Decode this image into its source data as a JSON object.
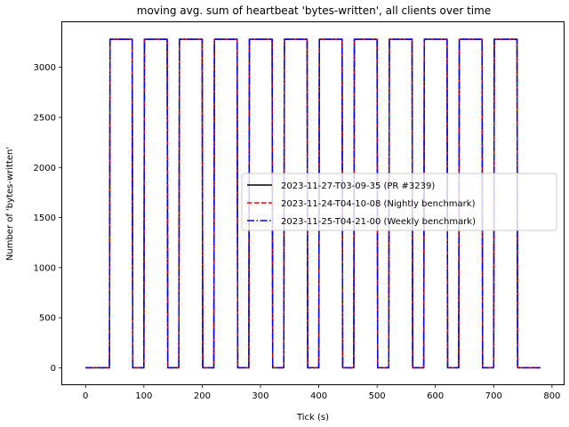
{
  "chart_data": {
    "type": "line",
    "title": "moving avg. sum of heartbeat 'bytes-written', all clients over time",
    "xlabel": "Tick (s)",
    "ylabel": "Number of 'bytes-written'",
    "xlim": [
      -40,
      820
    ],
    "ylim": [
      -165,
      3450
    ],
    "xticks": [
      0,
      100,
      200,
      300,
      400,
      500,
      600,
      700,
      800
    ],
    "yticks": [
      0,
      500,
      1000,
      1500,
      2000,
      2500,
      3000
    ],
    "grid": false,
    "legend_position": "center-right",
    "x": [
      0,
      41,
      42,
      80,
      81,
      100,
      101,
      140,
      141,
      160,
      161,
      200,
      201,
      220,
      221,
      260,
      261,
      280,
      281,
      320,
      321,
      340,
      341,
      380,
      381,
      400,
      401,
      440,
      441,
      460,
      461,
      500,
      501,
      520,
      521,
      560,
      561,
      580,
      581,
      620,
      621,
      640,
      641,
      680,
      681,
      700,
      701,
      740,
      741,
      780
    ],
    "series": [
      {
        "name": "2023-11-27-T03-09-35 (PR #3239)",
        "color": "#000000",
        "dash": "solid",
        "values": [
          0,
          0,
          3280,
          3280,
          0,
          0,
          3280,
          3280,
          0,
          0,
          3280,
          3280,
          0,
          0,
          3280,
          3280,
          0,
          0,
          3280,
          3280,
          0,
          0,
          3280,
          3280,
          0,
          0,
          3280,
          3280,
          0,
          0,
          3280,
          3280,
          0,
          0,
          3280,
          3280,
          0,
          0,
          3280,
          3280,
          0,
          0,
          3280,
          3280,
          0,
          0,
          3280,
          3280,
          0,
          0
        ]
      },
      {
        "name": "2023-11-24-T04-10-08 (Nightly benchmark)",
        "color": "#ff0000",
        "dash": "dashed",
        "values": [
          0,
          0,
          3280,
          3280,
          0,
          0,
          3280,
          3280,
          0,
          0,
          3280,
          3280,
          0,
          0,
          3280,
          3280,
          0,
          0,
          3280,
          3280,
          0,
          0,
          3280,
          3280,
          0,
          0,
          3280,
          3280,
          0,
          0,
          3280,
          3280,
          0,
          0,
          3280,
          3280,
          0,
          0,
          3280,
          3280,
          0,
          0,
          3280,
          3280,
          0,
          0,
          3280,
          3280,
          0,
          0
        ]
      },
      {
        "name": "2023-11-25-T04-21-00 (Weekly benchmark)",
        "color": "#0000ff",
        "dash": "dashdot",
        "values": [
          0,
          0,
          3280,
          3280,
          0,
          0,
          3280,
          3280,
          0,
          0,
          3280,
          3280,
          0,
          0,
          3280,
          3280,
          0,
          0,
          3280,
          3280,
          0,
          0,
          3280,
          3280,
          0,
          0,
          3280,
          3280,
          0,
          0,
          3280,
          3280,
          0,
          0,
          3280,
          3280,
          0,
          0,
          3280,
          3280,
          0,
          0,
          3280,
          3280,
          0,
          0,
          3280,
          3280,
          0,
          0
        ]
      }
    ]
  }
}
